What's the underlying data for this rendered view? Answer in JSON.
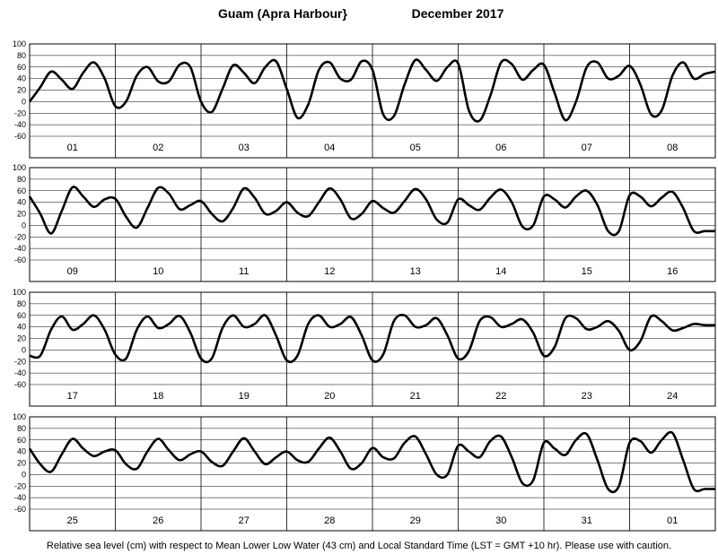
{
  "chart_data": {
    "type": "line",
    "title_location": "Guam (Apra Harbour}",
    "title_month": "December   2017",
    "footer": "Relative sea level (cm) with respect to Mean Lower Low Water (43 cm) and Local Standard Time (LST = GMT +10 hr). Please use with caution.",
    "ylim": [
      -60,
      100
    ],
    "y_ticks": [
      -60,
      -40,
      -20,
      0,
      20,
      40,
      60,
      80,
      100
    ],
    "y_tick_labels": [
      "-60",
      "-40",
      "-20",
      "0",
      "20",
      "40",
      "60",
      "80",
      "100"
    ],
    "grid": true,
    "panels": [
      {
        "day_labels": [
          "01",
          "02",
          "03",
          "04",
          "05",
          "06",
          "07",
          "08"
        ],
        "x_hours": [
          0,
          3,
          6,
          9,
          12,
          15,
          18,
          21,
          24,
          27,
          30,
          33,
          36,
          39,
          42,
          45,
          48,
          51,
          54,
          57,
          60,
          63,
          66,
          69,
          72,
          75,
          78,
          81,
          84,
          87,
          90,
          93,
          96,
          99,
          102,
          105,
          108,
          111,
          114,
          117,
          120,
          123,
          126,
          129,
          132,
          135,
          138,
          141,
          144,
          147,
          150,
          153,
          156,
          159,
          162,
          165,
          168,
          171,
          174,
          177,
          180,
          183,
          186,
          189,
          192
        ],
        "values": [
          0,
          25,
          52,
          38,
          22,
          50,
          68,
          40,
          -8,
          0,
          45,
          60,
          35,
          35,
          64,
          60,
          0,
          -18,
          22,
          63,
          50,
          32,
          60,
          70,
          22,
          -28,
          -5,
          55,
          68,
          40,
          38,
          70,
          55,
          -22,
          -25,
          30,
          72,
          55,
          36,
          60,
          66,
          -15,
          -33,
          10,
          68,
          65,
          38,
          55,
          64,
          15,
          -32,
          0,
          60,
          68,
          40,
          45,
          62,
          30,
          -22,
          -15,
          45,
          68,
          40,
          48,
          52
        ]
      },
      {
        "day_labels": [
          "09",
          "10",
          "11",
          "12",
          "13",
          "14",
          "15",
          "16"
        ],
        "x_hours": [
          0,
          3,
          6,
          9,
          12,
          15,
          18,
          21,
          24,
          27,
          30,
          33,
          36,
          39,
          42,
          45,
          48,
          51,
          54,
          57,
          60,
          63,
          66,
          69,
          72,
          75,
          78,
          81,
          84,
          87,
          90,
          93,
          96,
          99,
          102,
          105,
          108,
          111,
          114,
          117,
          120,
          123,
          126,
          129,
          132,
          135,
          138,
          141,
          144,
          147,
          150,
          153,
          156,
          159,
          162,
          165,
          168,
          171,
          174,
          177,
          180,
          183,
          186,
          189,
          192
        ],
        "values": [
          50,
          20,
          -14,
          25,
          66,
          50,
          32,
          45,
          46,
          15,
          -4,
          30,
          65,
          55,
          28,
          35,
          42,
          20,
          7,
          30,
          64,
          48,
          20,
          25,
          40,
          22,
          16,
          40,
          64,
          45,
          12,
          20,
          42,
          30,
          22,
          42,
          63,
          45,
          10,
          5,
          45,
          35,
          27,
          48,
          62,
          40,
          -2,
          0,
          50,
          45,
          31,
          50,
          60,
          35,
          -10,
          -10,
          52,
          50,
          33,
          48,
          58,
          30,
          -10,
          -10,
          -10
        ]
      },
      {
        "day_labels": [
          "17",
          "18",
          "19",
          "20",
          "21",
          "22",
          "23",
          "24"
        ],
        "x_hours": [
          0,
          3,
          6,
          9,
          12,
          15,
          18,
          21,
          24,
          27,
          30,
          33,
          36,
          39,
          42,
          45,
          48,
          51,
          54,
          57,
          60,
          63,
          66,
          69,
          72,
          75,
          78,
          81,
          84,
          87,
          90,
          93,
          96,
          99,
          102,
          105,
          108,
          111,
          114,
          117,
          120,
          123,
          126,
          129,
          132,
          135,
          138,
          141,
          144,
          147,
          150,
          153,
          156,
          159,
          162,
          165,
          168,
          171,
          174,
          177,
          180,
          183,
          186,
          189,
          192
        ],
        "values": [
          -10,
          -10,
          35,
          58,
          35,
          45,
          60,
          35,
          -8,
          -15,
          35,
          58,
          38,
          45,
          59,
          30,
          -15,
          -15,
          38,
          60,
          40,
          45,
          60,
          25,
          -18,
          -10,
          45,
          60,
          40,
          45,
          57,
          25,
          -18,
          -8,
          50,
          60,
          40,
          43,
          55,
          25,
          -15,
          -2,
          50,
          57,
          40,
          45,
          53,
          30,
          -10,
          5,
          55,
          55,
          36,
          40,
          50,
          33,
          0,
          15,
          58,
          50,
          34,
          38,
          45,
          43,
          43
        ]
      },
      {
        "day_labels": [
          "25",
          "26",
          "27",
          "28",
          "29",
          "30",
          "31",
          "01"
        ],
        "x_hours": [
          0,
          3,
          6,
          9,
          12,
          15,
          18,
          21,
          24,
          27,
          30,
          33,
          36,
          39,
          42,
          45,
          48,
          51,
          54,
          57,
          60,
          63,
          66,
          69,
          72,
          75,
          78,
          81,
          84,
          87,
          90,
          93,
          96,
          99,
          102,
          105,
          108,
          111,
          114,
          117,
          120,
          123,
          126,
          129,
          132,
          135,
          138,
          141,
          144,
          147,
          150,
          153,
          156,
          159,
          162,
          165,
          168,
          171,
          174,
          177,
          180,
          183,
          186,
          189,
          192
        ],
        "values": [
          45,
          18,
          5,
          35,
          62,
          45,
          32,
          40,
          42,
          18,
          10,
          40,
          62,
          42,
          25,
          35,
          40,
          22,
          15,
          40,
          63,
          40,
          18,
          30,
          40,
          25,
          22,
          45,
          64,
          40,
          10,
          20,
          46,
          30,
          28,
          55,
          66,
          35,
          0,
          0,
          50,
          40,
          30,
          58,
          66,
          30,
          -15,
          -10,
          55,
          45,
          34,
          60,
          70,
          25,
          -25,
          -20,
          55,
          58,
          38,
          60,
          72,
          25,
          -25,
          -25,
          -25
        ]
      }
    ]
  }
}
